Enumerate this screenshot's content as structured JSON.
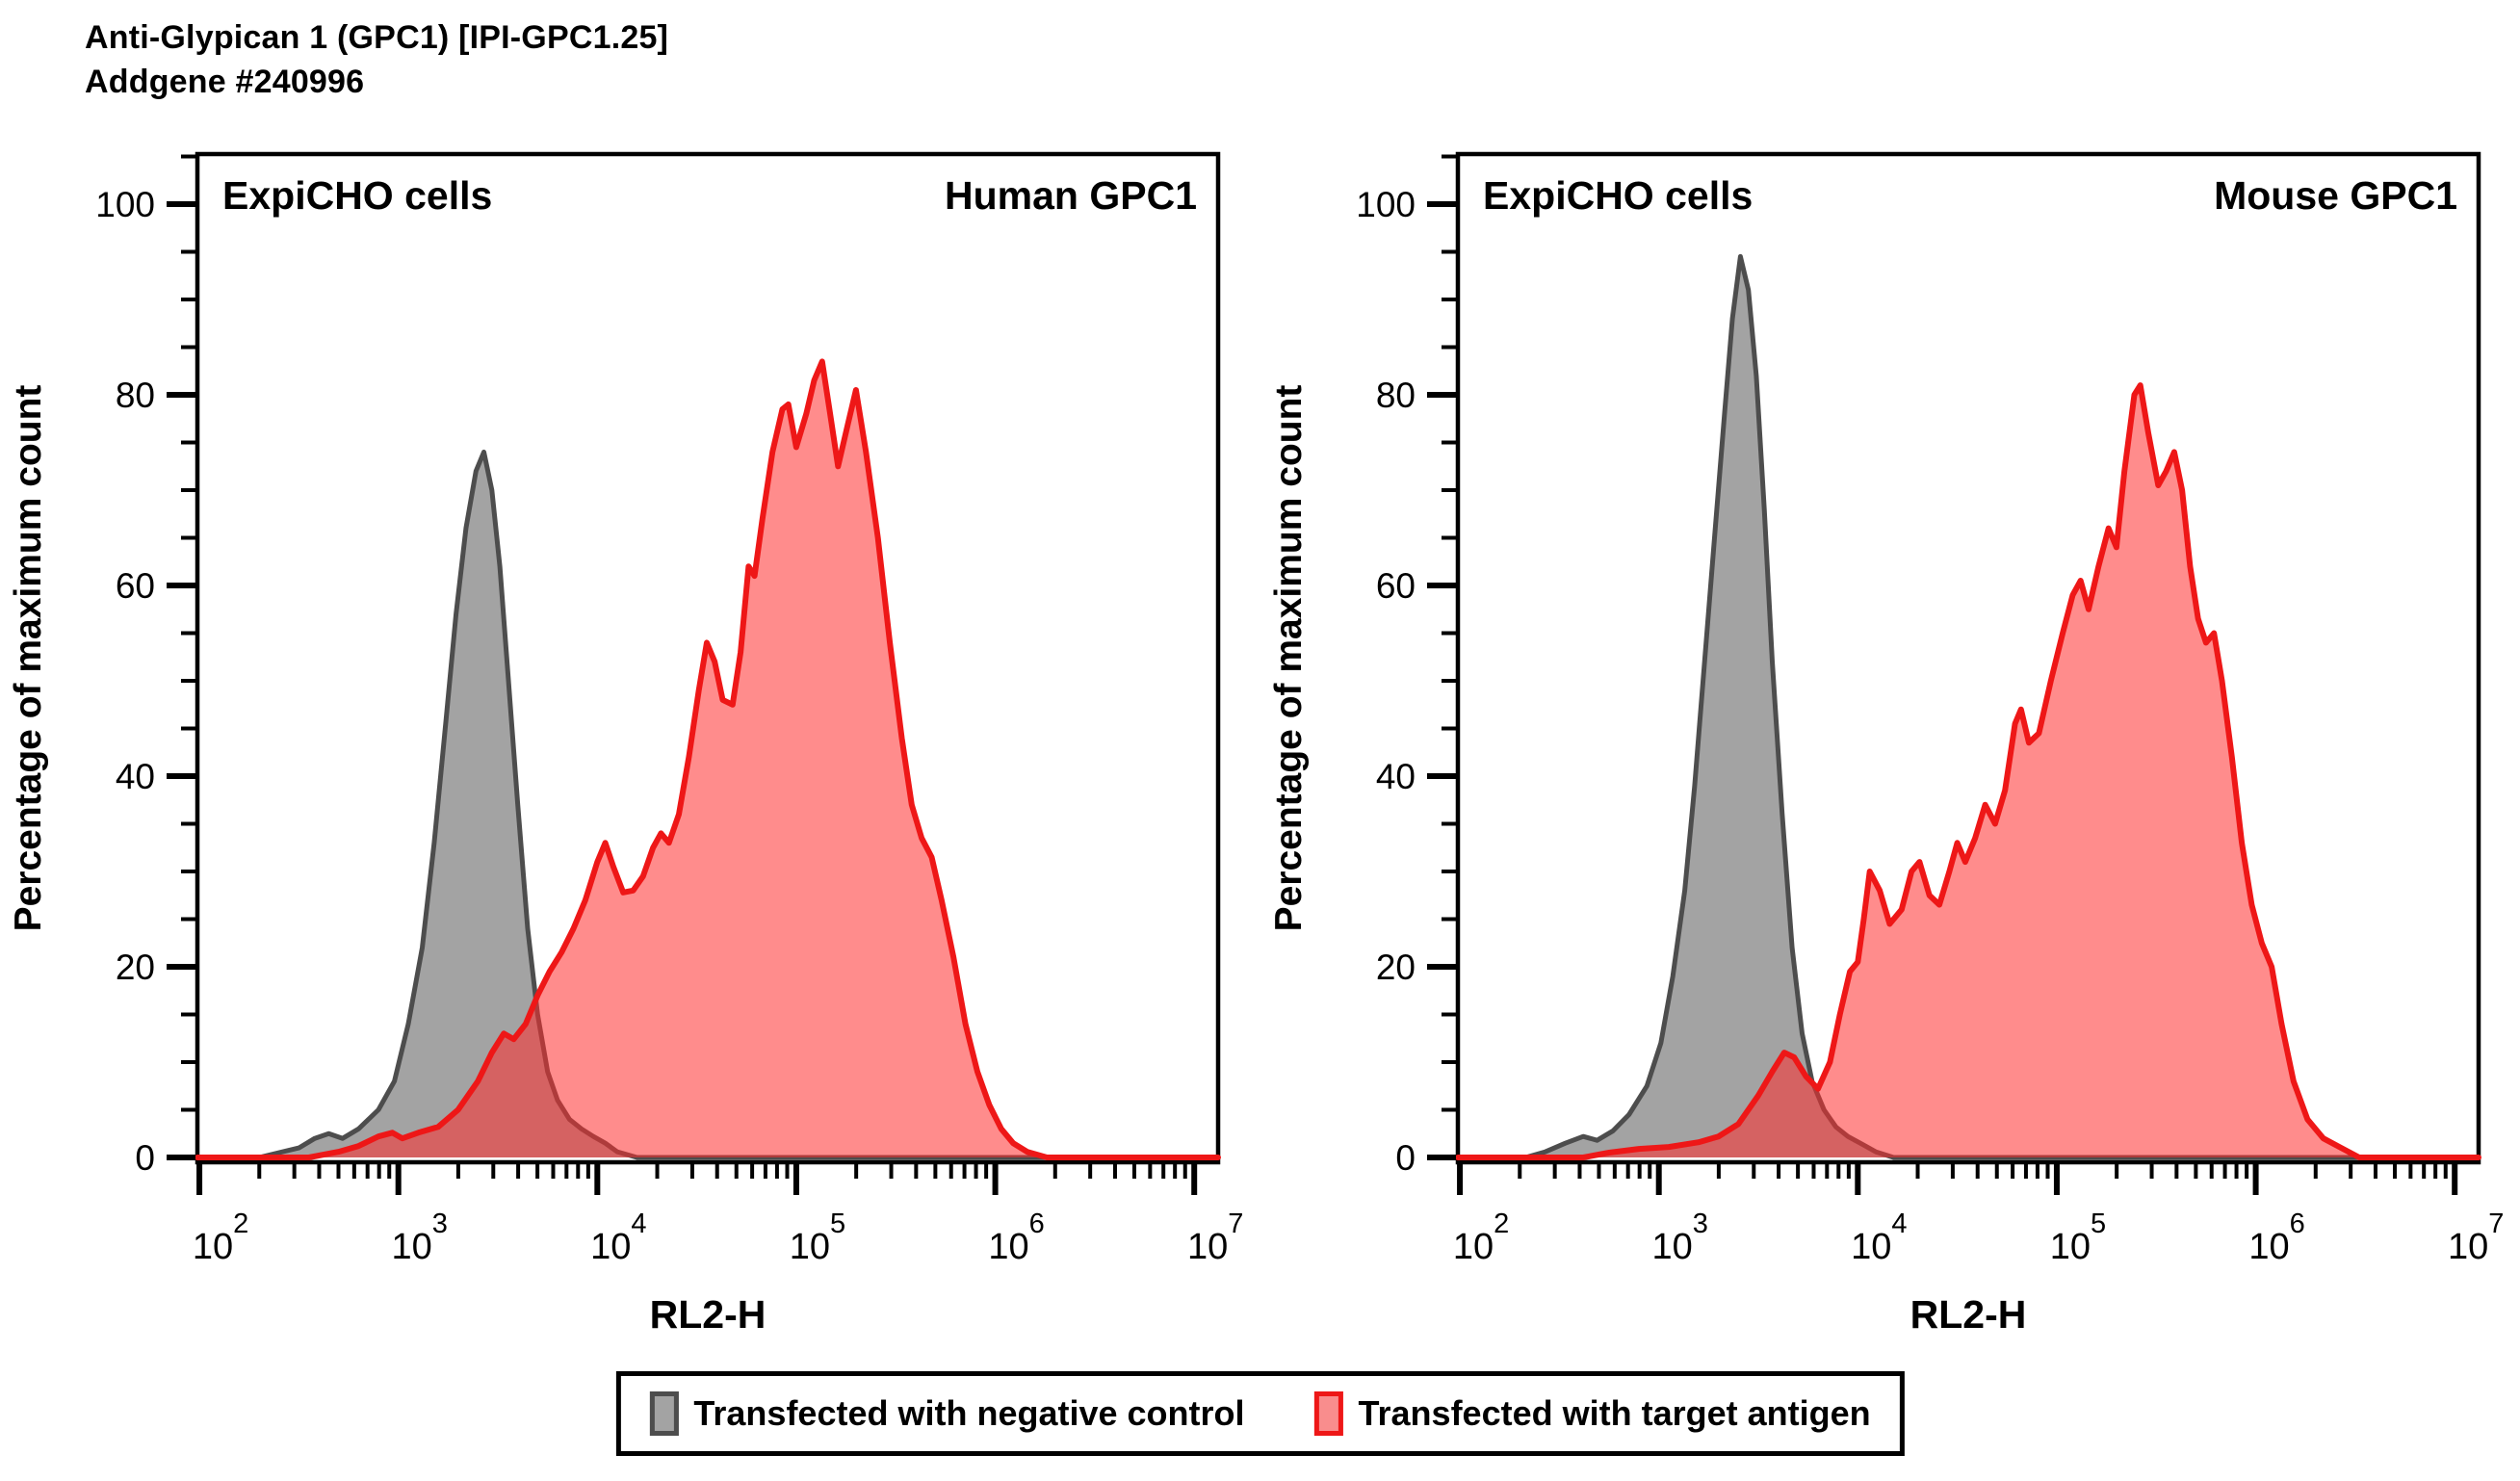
{
  "header": {
    "title_line1": "Anti-Glypican 1 (GPC1) [IPI-GPC1.25]",
    "title_line2": "Addgene #240996"
  },
  "colors": {
    "negative_fill": "#a3a3a3",
    "negative_stroke": "#4d4d4d",
    "target_fill": "rgba(255,45,45,0.55)",
    "target_stroke": "#ee1717",
    "axis": "#000000"
  },
  "legend": {
    "items": [
      {
        "label": "Transfected with negative control",
        "swatch": "negative"
      },
      {
        "label": "Transfected with target antigen",
        "swatch": "target"
      }
    ]
  },
  "axes": {
    "x_label": "RL2-H",
    "y_label": "Percentage of maximum count",
    "x_log_min": 1.99,
    "x_log_max": 7.12,
    "x_decades": [
      2,
      3,
      4,
      5,
      6,
      7
    ],
    "y_min": 0,
    "y_max": 100,
    "y_major_step": 20,
    "y_minor_step": 5,
    "y_minor_top": 105
  },
  "chart_data": [
    {
      "type": "area",
      "panel": "left",
      "title_left": "ExpiCHO cells",
      "title_right": "Human GPC1",
      "xlabel": "RL2-H",
      "ylabel": "Percentage of maximum count",
      "x_units": "log10 of RL2-H fluorescence",
      "y_units": "percent of maximum count",
      "series": [
        {
          "name": "Transfected with negative control",
          "color_key": "negative",
          "points": [
            [
              1.99,
              0
            ],
            [
              2.3,
              0
            ],
            [
              2.4,
              0.5
            ],
            [
              2.5,
              1
            ],
            [
              2.58,
              2
            ],
            [
              2.65,
              2.5
            ],
            [
              2.72,
              2
            ],
            [
              2.8,
              3
            ],
            [
              2.9,
              5
            ],
            [
              2.98,
              8
            ],
            [
              3.05,
              14
            ],
            [
              3.12,
              22
            ],
            [
              3.18,
              33
            ],
            [
              3.24,
              46
            ],
            [
              3.29,
              57
            ],
            [
              3.34,
              66
            ],
            [
              3.39,
              72
            ],
            [
              3.43,
              74
            ],
            [
              3.47,
              70
            ],
            [
              3.51,
              62
            ],
            [
              3.55,
              51
            ],
            [
              3.6,
              37
            ],
            [
              3.65,
              24
            ],
            [
              3.7,
              15
            ],
            [
              3.75,
              9
            ],
            [
              3.8,
              6
            ],
            [
              3.86,
              4
            ],
            [
              3.92,
              3
            ],
            [
              3.98,
              2.2
            ],
            [
              4.04,
              1.5
            ],
            [
              4.1,
              0.6
            ],
            [
              4.2,
              0
            ],
            [
              7.12,
              0
            ]
          ]
        },
        {
          "name": "Transfected with target antigen",
          "color_key": "target",
          "points": [
            [
              1.99,
              0
            ],
            [
              2.55,
              0
            ],
            [
              2.7,
              0.6
            ],
            [
              2.8,
              1.2
            ],
            [
              2.9,
              2.2
            ],
            [
              2.97,
              2.6
            ],
            [
              3.02,
              2
            ],
            [
              3.1,
              2.6
            ],
            [
              3.2,
              3.2
            ],
            [
              3.3,
              5
            ],
            [
              3.4,
              8
            ],
            [
              3.47,
              11
            ],
            [
              3.53,
              13
            ],
            [
              3.58,
              12.4
            ],
            [
              3.64,
              14
            ],
            [
              3.7,
              17
            ],
            [
              3.76,
              19.5
            ],
            [
              3.82,
              21.5
            ],
            [
              3.88,
              24
            ],
            [
              3.94,
              27
            ],
            [
              4.0,
              31
            ],
            [
              4.04,
              33
            ],
            [
              4.08,
              30.5
            ],
            [
              4.13,
              27.8
            ],
            [
              4.18,
              28
            ],
            [
              4.23,
              29.5
            ],
            [
              4.28,
              32.5
            ],
            [
              4.32,
              34
            ],
            [
              4.36,
              33
            ],
            [
              4.41,
              36
            ],
            [
              4.46,
              42
            ],
            [
              4.51,
              49
            ],
            [
              4.55,
              54
            ],
            [
              4.59,
              52
            ],
            [
              4.63,
              48
            ],
            [
              4.68,
              47.5
            ],
            [
              4.72,
              53
            ],
            [
              4.76,
              62
            ],
            [
              4.79,
              61
            ],
            [
              4.83,
              67
            ],
            [
              4.88,
              74
            ],
            [
              4.93,
              78.5
            ],
            [
              4.96,
              79
            ],
            [
              5.0,
              74.5
            ],
            [
              5.05,
              78
            ],
            [
              5.09,
              81.5
            ],
            [
              5.13,
              83.5
            ],
            [
              5.17,
              78
            ],
            [
              5.21,
              72.5
            ],
            [
              5.26,
              77
            ],
            [
              5.3,
              80.5
            ],
            [
              5.35,
              74
            ],
            [
              5.41,
              65
            ],
            [
              5.47,
              54
            ],
            [
              5.53,
              44
            ],
            [
              5.58,
              37
            ],
            [
              5.63,
              33.5
            ],
            [
              5.68,
              31.5
            ],
            [
              5.73,
              27
            ],
            [
              5.79,
              21
            ],
            [
              5.85,
              14
            ],
            [
              5.91,
              9
            ],
            [
              5.97,
              5.5
            ],
            [
              6.03,
              3
            ],
            [
              6.09,
              1.5
            ],
            [
              6.16,
              0.6
            ],
            [
              6.26,
              0
            ],
            [
              7.12,
              0
            ]
          ]
        }
      ]
    },
    {
      "type": "area",
      "panel": "right",
      "title_left": "ExpiCHO cells",
      "title_right": "Mouse GPC1",
      "xlabel": "RL2-H",
      "ylabel": "Percentage of maximum count",
      "x_units": "log10 of RL2-H fluorescence",
      "y_units": "percent of maximum count",
      "series": [
        {
          "name": "Transfected with negative control",
          "color_key": "negative",
          "points": [
            [
              1.99,
              0
            ],
            [
              2.33,
              0
            ],
            [
              2.43,
              0.6
            ],
            [
              2.53,
              1.5
            ],
            [
              2.62,
              2.2
            ],
            [
              2.69,
              1.8
            ],
            [
              2.77,
              2.8
            ],
            [
              2.85,
              4.5
            ],
            [
              2.94,
              7.5
            ],
            [
              3.01,
              12
            ],
            [
              3.07,
              19
            ],
            [
              3.13,
              28
            ],
            [
              3.18,
              39
            ],
            [
              3.23,
              52
            ],
            [
              3.28,
              65
            ],
            [
              3.33,
              78
            ],
            [
              3.37,
              88
            ],
            [
              3.41,
              94.5
            ],
            [
              3.45,
              91
            ],
            [
              3.49,
              82
            ],
            [
              3.53,
              68
            ],
            [
              3.57,
              52
            ],
            [
              3.62,
              36
            ],
            [
              3.67,
              22
            ],
            [
              3.72,
              13
            ],
            [
              3.77,
              8
            ],
            [
              3.83,
              5
            ],
            [
              3.89,
              3.2
            ],
            [
              3.95,
              2.2
            ],
            [
              4.02,
              1.4
            ],
            [
              4.09,
              0.6
            ],
            [
              4.18,
              0
            ],
            [
              7.12,
              0
            ]
          ]
        },
        {
          "name": "Transfected with target antigen",
          "color_key": "target",
          "points": [
            [
              1.99,
              0
            ],
            [
              2.62,
              0
            ],
            [
              2.75,
              0.5
            ],
            [
              2.9,
              0.9
            ],
            [
              3.05,
              1.1
            ],
            [
              3.2,
              1.6
            ],
            [
              3.3,
              2.2
            ],
            [
              3.4,
              3.5
            ],
            [
              3.5,
              6.5
            ],
            [
              3.57,
              9
            ],
            [
              3.63,
              11
            ],
            [
              3.68,
              10.5
            ],
            [
              3.74,
              8.5
            ],
            [
              3.8,
              7.2
            ],
            [
              3.86,
              10
            ],
            [
              3.91,
              15
            ],
            [
              3.96,
              19.5
            ],
            [
              4.0,
              20.5
            ],
            [
              4.03,
              25
            ],
            [
              4.06,
              30
            ],
            [
              4.11,
              28
            ],
            [
              4.16,
              24.5
            ],
            [
              4.22,
              26
            ],
            [
              4.27,
              30
            ],
            [
              4.31,
              31
            ],
            [
              4.36,
              27.5
            ],
            [
              4.41,
              26.5
            ],
            [
              4.46,
              30
            ],
            [
              4.5,
              33
            ],
            [
              4.54,
              31
            ],
            [
              4.59,
              33.5
            ],
            [
              4.64,
              37
            ],
            [
              4.69,
              35
            ],
            [
              4.74,
              38.5
            ],
            [
              4.79,
              45.5
            ],
            [
              4.82,
              47
            ],
            [
              4.86,
              43.5
            ],
            [
              4.91,
              44.5
            ],
            [
              4.97,
              50
            ],
            [
              5.03,
              55
            ],
            [
              5.08,
              59
            ],
            [
              5.12,
              60.5
            ],
            [
              5.16,
              57.5
            ],
            [
              5.21,
              62
            ],
            [
              5.26,
              66
            ],
            [
              5.3,
              64
            ],
            [
              5.34,
              72
            ],
            [
              5.39,
              80
            ],
            [
              5.42,
              81
            ],
            [
              5.46,
              76
            ],
            [
              5.51,
              70.5
            ],
            [
              5.55,
              72
            ],
            [
              5.59,
              74
            ],
            [
              5.63,
              70
            ],
            [
              5.67,
              62
            ],
            [
              5.71,
              56.5
            ],
            [
              5.75,
              54
            ],
            [
              5.79,
              55
            ],
            [
              5.83,
              50
            ],
            [
              5.88,
              42
            ],
            [
              5.93,
              33
            ],
            [
              5.98,
              26.5
            ],
            [
              6.03,
              22.5
            ],
            [
              6.08,
              20
            ],
            [
              6.13,
              14
            ],
            [
              6.19,
              8
            ],
            [
              6.26,
              4
            ],
            [
              6.34,
              2
            ],
            [
              6.43,
              1
            ],
            [
              6.52,
              0
            ],
            [
              7.12,
              0
            ]
          ]
        }
      ]
    }
  ]
}
